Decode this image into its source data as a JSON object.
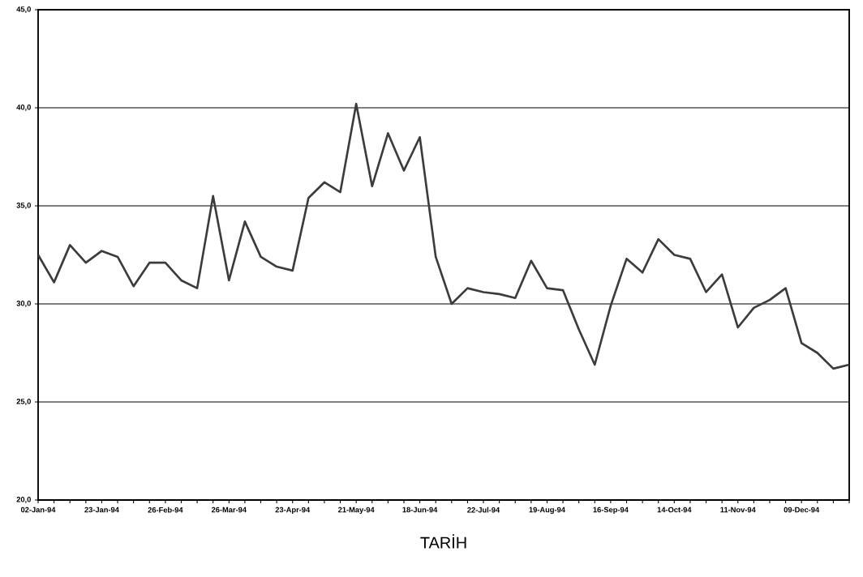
{
  "chart_data": {
    "type": "line",
    "xlabel": "TARİH",
    "categories": [
      "02-Jan-94",
      null,
      null,
      null,
      "23-Jan-94",
      null,
      null,
      null,
      "26-Feb-94",
      null,
      null,
      null,
      "26-Mar-94",
      null,
      null,
      null,
      "23-Apr-94",
      null,
      null,
      null,
      "21-May-94",
      null,
      null,
      null,
      "18-Jun-94",
      null,
      null,
      null,
      "22-Jul-94",
      null,
      null,
      null,
      "19-Aug-94",
      null,
      null,
      null,
      "16-Sep-94",
      null,
      null,
      null,
      "14-Oct-94",
      null,
      null,
      null,
      "11-Nov-94",
      null,
      null,
      null,
      "09-Dec-94",
      null,
      null,
      null
    ],
    "values": [
      32.5,
      31.1,
      33.0,
      32.1,
      32.7,
      32.4,
      30.9,
      32.1,
      32.1,
      31.2,
      30.8,
      35.5,
      31.2,
      34.2,
      32.4,
      31.9,
      31.7,
      35.4,
      36.2,
      35.7,
      40.2,
      36.0,
      38.7,
      36.8,
      38.5,
      32.4,
      30.0,
      30.8,
      30.6,
      30.5,
      30.3,
      32.2,
      30.8,
      30.7,
      28.7,
      26.9,
      29.9,
      32.3,
      31.6,
      33.3,
      32.5,
      32.3,
      30.6,
      31.5,
      28.8,
      29.8,
      30.2,
      30.8,
      28.0,
      27.5,
      26.7,
      26.9
    ],
    "color": "#3c3c3c",
    "ylim": [
      20,
      45
    ],
    "yticks": [
      {
        "value": 20,
        "label": "20,0"
      },
      {
        "value": 25,
        "label": "25,0"
      },
      {
        "value": 30,
        "label": "30,0"
      },
      {
        "value": 35,
        "label": "35,0"
      },
      {
        "value": 40,
        "label": "40,0"
      },
      {
        "value": 45,
        "label": "45,0"
      }
    ],
    "grid": "y",
    "marker": "none",
    "line_style": "solid"
  }
}
